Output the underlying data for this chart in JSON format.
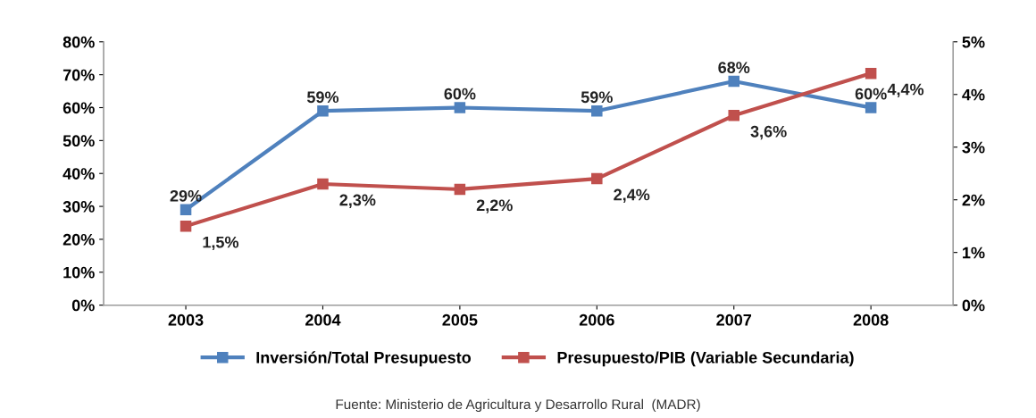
{
  "chart_data": {
    "type": "line",
    "categories": [
      "2003",
      "2004",
      "2005",
      "2006",
      "2007",
      "2008"
    ],
    "series": [
      {
        "name": "Inversión/Total Presupuesto",
        "color": "#4f81bd",
        "values": [
          29,
          59,
          60,
          59,
          68,
          60
        ],
        "value_labels": [
          "29%",
          "59%",
          "60%",
          "59%",
          "68%",
          "60%"
        ]
      },
      {
        "name": "Presupuesto/PIB (Variable Secundaria)",
        "color": "#c0504d",
        "axis": "y2",
        "values": [
          1.5,
          2.3,
          2.2,
          2.4,
          3.6,
          4.4
        ],
        "value_labels": [
          "1,5%",
          "2,3%",
          "2,2%",
          "2,4%",
          "3,6%",
          "4,4%"
        ]
      }
    ],
    "ylim": [
      0,
      80
    ],
    "yticks": [
      {
        "value": 0,
        "label": "0%"
      },
      {
        "value": 10,
        "label": "10%"
      },
      {
        "value": 20,
        "label": "20%"
      },
      {
        "value": 30,
        "label": "30%"
      },
      {
        "value": 40,
        "label": "40%"
      },
      {
        "value": 50,
        "label": "50%"
      },
      {
        "value": 60,
        "label": "60%"
      },
      {
        "value": 70,
        "label": "70%"
      },
      {
        "value": 80,
        "label": "80%"
      }
    ],
    "y2lim": [
      0,
      5
    ],
    "y2ticks": [
      {
        "value": 0,
        "label": "0%"
      },
      {
        "value": 1,
        "label": "1%"
      },
      {
        "value": 2,
        "label": "2%"
      },
      {
        "value": 3,
        "label": "3%"
      },
      {
        "value": 4,
        "label": "4%"
      },
      {
        "value": 5,
        "label": "5%"
      }
    ],
    "marker": "square",
    "line_style": "solid",
    "grid": false,
    "legend": "bottom",
    "annotations": [
      "Fuente: Ministerio de Agricultura y Desarrollo Rural  (MADR)"
    ]
  }
}
